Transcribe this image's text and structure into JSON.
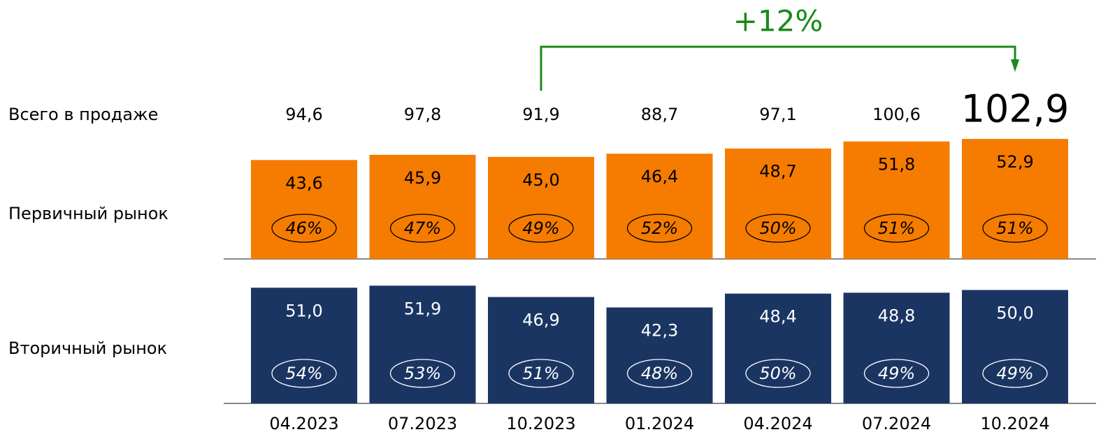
{
  "chart_data": {
    "type": "bar",
    "categories": [
      "04.2023",
      "07.2023",
      "10.2023",
      "01.2024",
      "04.2024",
      "07.2024",
      "10.2024"
    ],
    "total": {
      "name": "Всего в продаже",
      "values": [
        94.6,
        97.8,
        91.9,
        88.7,
        97.1,
        100.6,
        102.9
      ],
      "value_labels": [
        "94,6",
        "97,8",
        "91,9",
        "88,7",
        "97,1",
        "100,6",
        "102,9"
      ]
    },
    "series": [
      {
        "name": "Первичный рынок",
        "color": "#f57c00",
        "values": [
          43.6,
          45.9,
          45.0,
          46.4,
          48.7,
          51.8,
          52.9
        ],
        "value_labels": [
          "43,6",
          "45,9",
          "45,0",
          "46,4",
          "48,7",
          "51,8",
          "52,9"
        ],
        "shares": [
          46,
          47,
          49,
          52,
          50,
          51,
          51
        ],
        "share_labels": [
          "46%",
          "47%",
          "49%",
          "52%",
          "50%",
          "51%",
          "51%"
        ]
      },
      {
        "name": "Вторичный рынок",
        "color": "#1b3563",
        "values": [
          51.0,
          51.9,
          46.9,
          42.3,
          48.4,
          48.8,
          50.0
        ],
        "value_labels": [
          "51,0",
          "51,9",
          "46,9",
          "42,3",
          "48,4",
          "48,8",
          "50,0"
        ],
        "shares": [
          54,
          53,
          51,
          48,
          50,
          49,
          49
        ],
        "share_labels": [
          "54%",
          "53%",
          "51%",
          "48%",
          "50%",
          "49%",
          "49%"
        ]
      }
    ],
    "annotation": {
      "text": "+12%",
      "color": "#188a18"
    }
  }
}
